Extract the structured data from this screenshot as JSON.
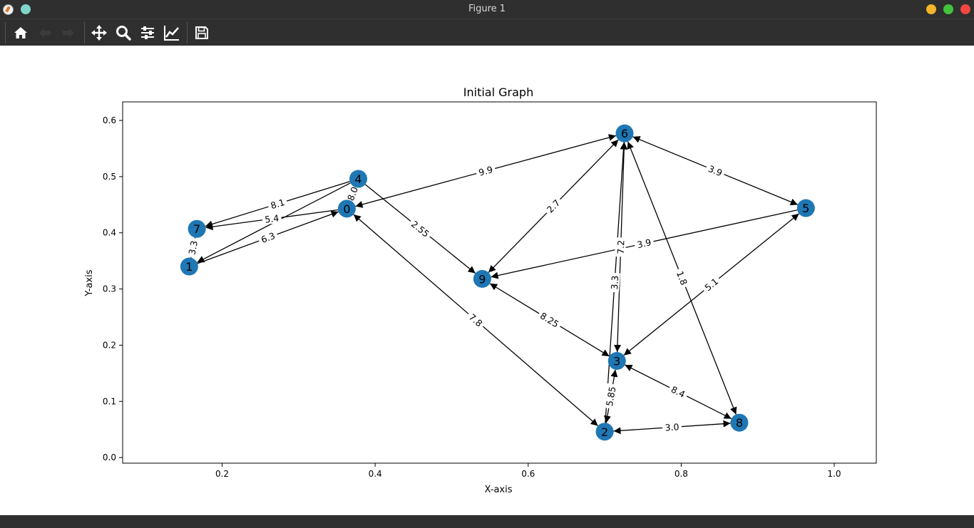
{
  "window": {
    "title": "Figure 1"
  },
  "toolbar": {
    "buttons": [
      {
        "name": "home-button",
        "icon": "home-icon",
        "enabled": true
      },
      {
        "name": "back-button",
        "icon": "arrow-left-icon",
        "enabled": false
      },
      {
        "name": "forward-button",
        "icon": "arrow-right-icon",
        "enabled": false
      },
      {
        "name": "pan-button",
        "icon": "move-icon",
        "enabled": true
      },
      {
        "name": "zoom-button",
        "icon": "magnifier-icon",
        "enabled": true
      },
      {
        "name": "configure-subplots-button",
        "icon": "sliders-icon",
        "enabled": true
      },
      {
        "name": "edit-axis-button",
        "icon": "line-chart-icon",
        "enabled": true
      },
      {
        "name": "save-button",
        "icon": "floppy-disk-icon",
        "enabled": true
      }
    ]
  },
  "chart_data": {
    "type": "network-graph",
    "title": "Initial Graph",
    "xlabel": "X-axis",
    "ylabel": "Y-axis",
    "xlim": [
      0.07,
      1.055
    ],
    "ylim": [
      -0.01,
      0.633
    ],
    "xticks": [
      "0.2",
      "0.4",
      "0.6",
      "0.8",
      "1.0"
    ],
    "xtick_values": [
      0.2,
      0.4,
      0.6,
      0.8,
      1.0
    ],
    "yticks": [
      "0.0",
      "0.1",
      "0.2",
      "0.3",
      "0.4",
      "0.5",
      "0.6"
    ],
    "ytick_values": [
      0.0,
      0.1,
      0.2,
      0.3,
      0.4,
      0.5,
      0.6
    ],
    "grid": false,
    "node_color": "#1f77b4",
    "edge_color": "#000000",
    "nodes": [
      {
        "id": "0",
        "x": 0.363,
        "y": 0.443
      },
      {
        "id": "1",
        "x": 0.157,
        "y": 0.34
      },
      {
        "id": "2",
        "x": 0.7,
        "y": 0.046
      },
      {
        "id": "3",
        "x": 0.716,
        "y": 0.172
      },
      {
        "id": "4",
        "x": 0.378,
        "y": 0.496
      },
      {
        "id": "5",
        "x": 0.963,
        "y": 0.444
      },
      {
        "id": "6",
        "x": 0.726,
        "y": 0.577
      },
      {
        "id": "7",
        "x": 0.167,
        "y": 0.407
      },
      {
        "id": "8",
        "x": 0.876,
        "y": 0.062
      },
      {
        "id": "9",
        "x": 0.54,
        "y": 0.318
      }
    ],
    "edges": [
      {
        "source": "4",
        "target": "7",
        "label": "8.1",
        "direction": "forward"
      },
      {
        "source": "0",
        "target": "7",
        "label": "5.4",
        "direction": "forward"
      },
      {
        "source": "1",
        "target": "0",
        "label": "6.3",
        "direction": "forward"
      },
      {
        "source": "4",
        "target": "1",
        "label": "",
        "direction": "forward"
      },
      {
        "source": "7",
        "target": "1",
        "label": "3.3",
        "direction": "none"
      },
      {
        "source": "4",
        "target": "0",
        "label": "8.0",
        "direction": "none"
      },
      {
        "source": "6",
        "target": "0",
        "label": "9.9",
        "direction": "both"
      },
      {
        "source": "4",
        "target": "9",
        "label": "2.55",
        "direction": "forward"
      },
      {
        "source": "6",
        "target": "9",
        "label": "2.7",
        "direction": "both"
      },
      {
        "source": "5",
        "target": "9",
        "label": "3.9",
        "direction": "forward"
      },
      {
        "source": "2",
        "target": "0",
        "label": "7.8",
        "direction": "both"
      },
      {
        "source": "9",
        "target": "3",
        "label": "8.25",
        "direction": "both"
      },
      {
        "source": "6",
        "target": "5",
        "label": "3.9",
        "direction": "both"
      },
      {
        "source": "6",
        "target": "3",
        "label": "7.2",
        "direction": "both"
      },
      {
        "source": "2",
        "target": "6",
        "label": "3.3",
        "direction": "forward"
      },
      {
        "source": "6",
        "target": "8",
        "label": "1.8",
        "direction": "both"
      },
      {
        "source": "5",
        "target": "3",
        "label": "5.1",
        "direction": "both"
      },
      {
        "source": "3",
        "target": "8",
        "label": "8.4",
        "direction": "both"
      },
      {
        "source": "2",
        "target": "8",
        "label": "3.0",
        "direction": "both"
      },
      {
        "source": "2",
        "target": "3",
        "label": "5.85",
        "direction": "both"
      }
    ]
  }
}
